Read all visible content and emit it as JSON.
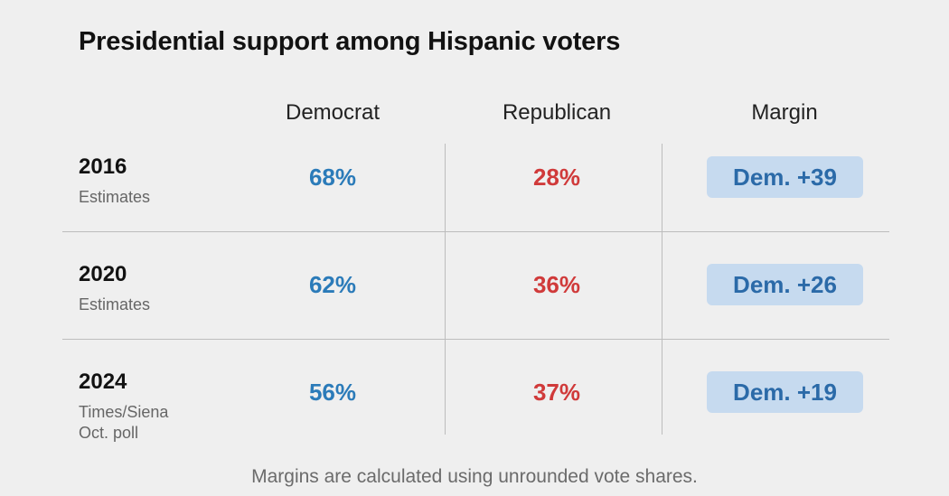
{
  "chart_data": {
    "type": "table",
    "title": "Presidential support among Hispanic voters",
    "columns": [
      "Democrat",
      "Republican",
      "Margin"
    ],
    "rows": [
      {
        "year": "2016",
        "subtitle": "Estimates",
        "democrat": "68%",
        "republican": "28%",
        "margin": "Dem. +39"
      },
      {
        "year": "2020",
        "subtitle": "Estimates",
        "democrat": "62%",
        "republican": "36%",
        "margin": "Dem. +26"
      },
      {
        "year": "2024",
        "subtitle": "Times/Siena\nOct. poll",
        "democrat": "56%",
        "republican": "37%",
        "margin": "Dem. +19"
      }
    ],
    "footnote": "Margins are calculated using unrounded vote shares."
  },
  "colors": {
    "democrat": "#2b7bb9",
    "republican": "#d03a3a",
    "margin_badge_bg": "#c6daef",
    "margin_badge_text": "#2b6aa8"
  }
}
